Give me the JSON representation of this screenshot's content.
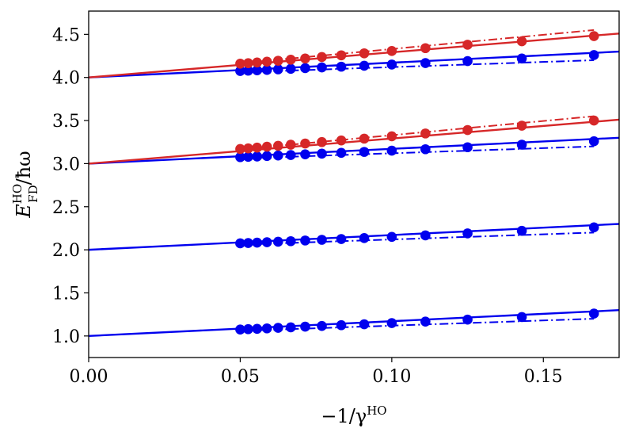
{
  "chart_data": {
    "type": "scatter",
    "title": "",
    "xlabel": "−1/γ",
    "xlabel_sup": "HO",
    "ylabel_main": "E",
    "ylabel_sup": "HO",
    "ylabel_sub": "FD",
    "ylabel_tail": "/ħω",
    "xlim": [
      0.0,
      0.175
    ],
    "ylim": [
      0.75,
      4.77
    ],
    "grid": false,
    "legend": "none",
    "x_ticks": [
      {
        "value": 0.0,
        "label": "0.00"
      },
      {
        "value": 0.05,
        "label": "0.05"
      },
      {
        "value": 0.1,
        "label": "0.10"
      },
      {
        "value": 0.15,
        "label": "0.15"
      }
    ],
    "y_ticks": [
      {
        "value": 1.0,
        "label": "1.0"
      },
      {
        "value": 1.5,
        "label": "1.5"
      },
      {
        "value": 2.0,
        "label": "2.0"
      },
      {
        "value": 2.5,
        "label": "2.5"
      },
      {
        "value": 3.0,
        "label": "3.0"
      },
      {
        "value": 3.5,
        "label": "3.5"
      },
      {
        "value": 4.0,
        "label": "4.0"
      },
      {
        "value": 4.5,
        "label": "4.5"
      }
    ],
    "x_points": [
      0.05,
      0.05263,
      0.05556,
      0.05882,
      0.0625,
      0.06667,
      0.07143,
      0.07692,
      0.08333,
      0.09091,
      0.1,
      0.1111,
      0.125,
      0.1429,
      0.1667
    ],
    "series": [
      {
        "name": "level-1-blue",
        "color": "#0000ee",
        "intercept": 1.0,
        "solid_slope": 1.714,
        "dashdot_slope": 1.2,
        "values": [
          1.075,
          1.079,
          1.083,
          1.088,
          1.094,
          1.1,
          1.108,
          1.116,
          1.125,
          1.136,
          1.15,
          1.167,
          1.19,
          1.22,
          1.26
        ]
      },
      {
        "name": "level-2-blue",
        "color": "#0000ee",
        "intercept": 2.0,
        "solid_slope": 1.714,
        "dashdot_slope": 1.2,
        "values": [
          2.075,
          2.079,
          2.083,
          2.088,
          2.094,
          2.1,
          2.108,
          2.116,
          2.125,
          2.136,
          2.15,
          2.167,
          2.19,
          2.22,
          2.26
        ]
      },
      {
        "name": "level-3-blue",
        "color": "#0000ee",
        "intercept": 3.0,
        "solid_slope": 1.714,
        "dashdot_slope": 1.2,
        "values": [
          3.075,
          3.079,
          3.083,
          3.088,
          3.094,
          3.1,
          3.108,
          3.116,
          3.125,
          3.136,
          3.15,
          3.167,
          3.19,
          3.22,
          3.26
        ]
      },
      {
        "name": "level-3-red",
        "color": "#d62728",
        "intercept": 3.0,
        "solid_slope": 2.914,
        "dashdot_slope": 3.3,
        "values": [
          3.17,
          3.177,
          3.186,
          3.196,
          3.207,
          3.219,
          3.233,
          3.25,
          3.269,
          3.29,
          3.317,
          3.35,
          3.39,
          3.44,
          3.5
        ]
      },
      {
        "name": "level-4-blue",
        "color": "#0000ee",
        "intercept": 4.0,
        "solid_slope": 1.714,
        "dashdot_slope": 1.2,
        "values": [
          4.075,
          4.079,
          4.083,
          4.088,
          4.094,
          4.1,
          4.108,
          4.116,
          4.125,
          4.136,
          4.15,
          4.167,
          4.19,
          4.22,
          4.26
        ]
      },
      {
        "name": "level-4-red",
        "color": "#d62728",
        "intercept": 4.0,
        "solid_slope": 2.914,
        "dashdot_slope": 3.3,
        "values": [
          4.16,
          4.166,
          4.174,
          4.183,
          4.194,
          4.206,
          4.22,
          4.237,
          4.257,
          4.28,
          4.307,
          4.34,
          4.38,
          4.42,
          4.48
        ]
      }
    ]
  }
}
